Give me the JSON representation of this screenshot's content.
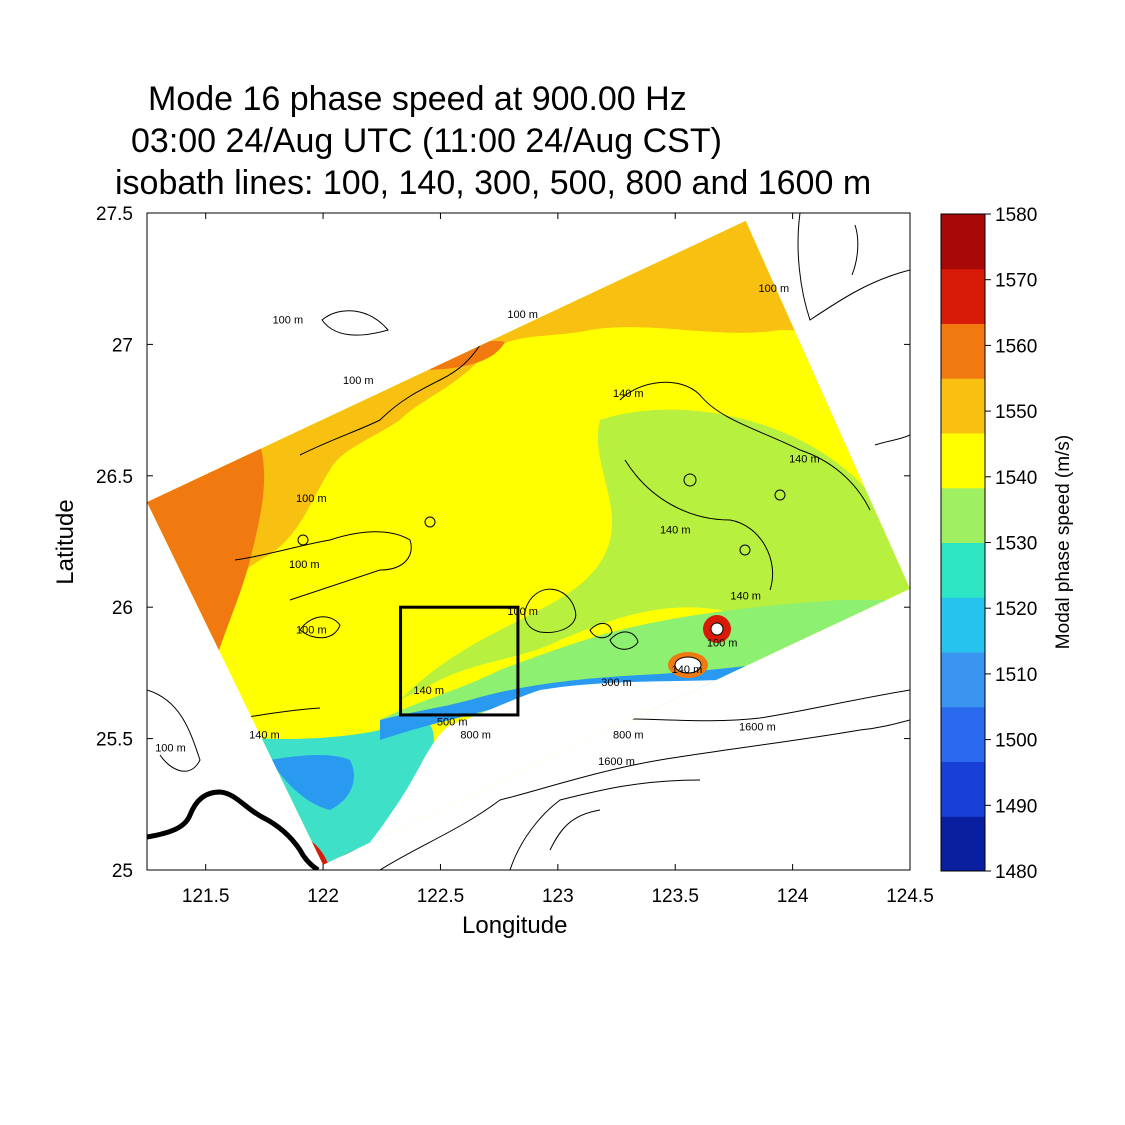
{
  "titles": {
    "line1": "Mode 16 phase speed at 900.00 Hz",
    "line2": "03:00 24/Aug UTC (11:00 24/Aug CST)",
    "line3": "isobath lines: 100, 140, 300, 500, 800 and 1600 m"
  },
  "chart_data": {
    "type": "heatmap",
    "title": "Mode 16 phase speed at 900.00 Hz",
    "subtitle": "03:00 24/Aug UTC (11:00 24/Aug CST)",
    "annotation": "isobath lines: 100, 140, 300, 500, 800 and 1600 m",
    "xlabel": "Longitude",
    "ylabel": "Latitude",
    "xlim": [
      121.25,
      124.5
    ],
    "ylim": [
      25.0,
      27.5
    ],
    "xticks": [
      121.5,
      122,
      122.5,
      123,
      123.5,
      124,
      124.5
    ],
    "yticks": [
      25,
      25.5,
      26,
      26.5,
      27,
      27.5
    ],
    "domain_corners": [
      {
        "lon": 121.25,
        "lat": 26.4
      },
      {
        "lon": 123.8,
        "lat": 27.47
      },
      {
        "lon": 124.5,
        "lat": 26.07
      },
      {
        "lon": 122.0,
        "lat": 25.02
      }
    ],
    "box": {
      "lon_min": 122.33,
      "lon_max": 122.83,
      "lat_min": 25.59,
      "lat_max": 26.0
    },
    "isobath_labels": [
      {
        "text": "100 m",
        "lon": 121.85,
        "lat": 27.08
      },
      {
        "text": "100 m",
        "lon": 121.95,
        "lat": 26.4
      },
      {
        "text": "100 m",
        "lon": 121.92,
        "lat": 26.15
      },
      {
        "text": "100 m",
        "lon": 121.95,
        "lat": 25.9
      },
      {
        "text": "100 m",
        "lon": 121.35,
        "lat": 25.45
      },
      {
        "text": "100 m",
        "lon": 122.85,
        "lat": 27.1
      },
      {
        "text": "100 m",
        "lon": 122.15,
        "lat": 26.85
      },
      {
        "text": "100 m",
        "lon": 123.92,
        "lat": 27.2
      },
      {
        "text": "100 m",
        "lon": 122.85,
        "lat": 25.97
      },
      {
        "text": "100 m",
        "lon": 123.7,
        "lat": 25.85
      },
      {
        "text": "140 m",
        "lon": 123.3,
        "lat": 26.8
      },
      {
        "text": "140 m",
        "lon": 123.5,
        "lat": 26.28
      },
      {
        "text": "140 m",
        "lon": 124.05,
        "lat": 26.55
      },
      {
        "text": "140 m",
        "lon": 123.8,
        "lat": 26.03
      },
      {
        "text": "140 m",
        "lon": 122.45,
        "lat": 25.67
      },
      {
        "text": "140 m",
        "lon": 123.55,
        "lat": 25.75
      },
      {
        "text": "140 m",
        "lon": 121.75,
        "lat": 25.5
      },
      {
        "text": "300 m",
        "lon": 123.25,
        "lat": 25.7
      },
      {
        "text": "500 m",
        "lon": 122.55,
        "lat": 25.55
      },
      {
        "text": "800 m",
        "lon": 122.65,
        "lat": 25.5
      },
      {
        "text": "800 m",
        "lon": 123.3,
        "lat": 25.5
      },
      {
        "text": "1600 m",
        "lon": 123.85,
        "lat": 25.53
      },
      {
        "text": "1600 m",
        "lon": 123.25,
        "lat": 25.4
      }
    ],
    "colorbar": {
      "label": "Modal phase speed (m/s)",
      "min": 1480,
      "max": 1580,
      "ticks": [
        1480,
        1490,
        1500,
        1510,
        1520,
        1530,
        1540,
        1550,
        1560,
        1570,
        1580
      ],
      "colors": [
        "#0a1fa0",
        "#1740d8",
        "#2a6aee",
        "#3a95f0",
        "#25c3ee",
        "#2ee6c4",
        "#9ef060",
        "#ffff00",
        "#f8c010",
        "#f07a10",
        "#d81a08",
        "#a80808"
      ]
    },
    "regions": [
      {
        "name": "orange-band-north",
        "value": 1550
      },
      {
        "name": "red-band-northwest",
        "value": 1562
      },
      {
        "name": "yellow-interior",
        "value": 1542
      },
      {
        "name": "greenish-east",
        "value": 1535
      },
      {
        "name": "cyan-southwest-shelf",
        "value": 1522
      },
      {
        "name": "blue-coastal-strip",
        "value": 1512
      }
    ]
  }
}
